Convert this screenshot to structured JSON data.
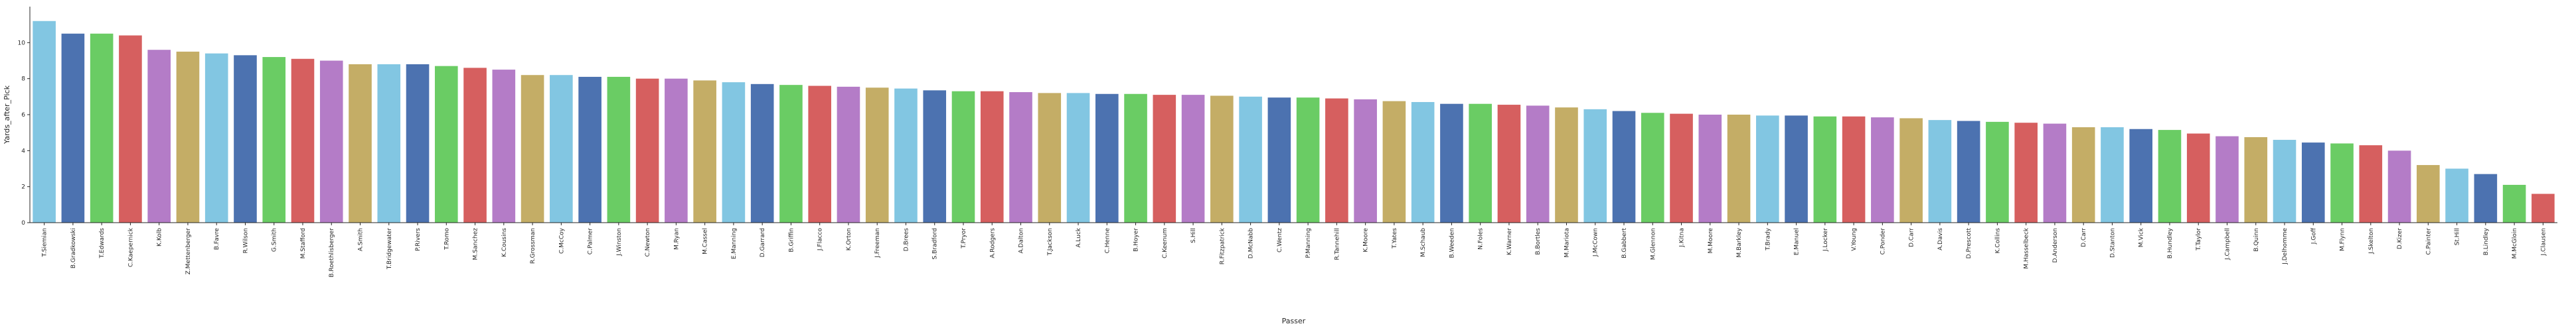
{
  "chart_data": {
    "type": "bar",
    "xlabel": "Passer",
    "ylabel": "Yards_after_Pick",
    "ylim": [
      0,
      12
    ],
    "yticks": [
      0,
      2,
      4,
      6,
      8,
      10
    ],
    "grid": false,
    "palette": [
      "#82c6e2",
      "#4c72b0",
      "#6acc64",
      "#d65f5f",
      "#b47cc7",
      "#c4ad66"
    ],
    "categories": [
      "T.Siemian",
      "B.Gradkowski",
      "T.Edwards",
      "C.Kaepernick",
      "K.Kolb",
      "Z.Mettenberger",
      "B.Favre",
      "R.Wilson",
      "G.Smith",
      "M.Stafford",
      "B.Roethlisberger",
      "A.Smith",
      "T.Bridgewater",
      "P.Rivers",
      "T.Romo",
      "M.Sanchez",
      "K.Cousins",
      "R.Grossman",
      "C.McCoy",
      "C.Palmer",
      "J.Winston",
      "C.Newton",
      "M.Ryan",
      "M.Cassel",
      "E.Manning",
      "D.Garrard",
      "B.Griffin",
      "J.Flacco",
      "K.Orton",
      "J.Freeman",
      "D.Brees",
      "S.Bradford",
      "T.Pryor",
      "A.Rodgers",
      "A.Dalton",
      "T.Jackson",
      "A.Luck",
      "C.Henne",
      "B.Hoyer",
      "C.Keenum",
      "S.Hill",
      "R.Fitzpatrick",
      "D.McNabb",
      "C.Wentz",
      "P.Manning",
      "R.Tannehill",
      "K.Moore",
      "T.Yates",
      "M.Schaub",
      "B.Weeden",
      "N.Foles",
      "K.Warner",
      "B.Bortles",
      "M.Mariota",
      "J.McCown",
      "B.Gabbert",
      "M.Glennon",
      "J.Kitna",
      "M.Moore",
      "M.Barkley",
      "T.Brady",
      "E.Manuel",
      "J.Locker",
      "V.Young",
      "C.Ponder",
      "D.Carr",
      "A.Davis",
      "D.Prescott",
      "K.Collins",
      "M.Hasselbeck",
      "D.Anderson",
      "D.Carr",
      "D.Stanton",
      "M.Vick",
      "B.Hundley",
      "T.Taylor",
      "J.Campbell",
      "B.Quinn",
      "J.Delhomme",
      "J.Goff",
      "M.Flynn",
      "J.Skelton",
      "D.Kizer",
      "C.Painter",
      "St.Hill",
      "B.Lindley",
      "M.McGloin",
      "J.Clausen"
    ],
    "values": [
      11.2,
      10.5,
      10.5,
      10.4,
      9.6,
      9.5,
      9.4,
      9.3,
      9.2,
      9.1,
      9.0,
      8.8,
      8.8,
      8.8,
      8.7,
      8.6,
      8.5,
      8.2,
      8.2,
      8.1,
      8.1,
      8.0,
      8.0,
      7.9,
      7.8,
      7.7,
      7.65,
      7.6,
      7.55,
      7.5,
      7.45,
      7.35,
      7.3,
      7.3,
      7.25,
      7.2,
      7.2,
      7.15,
      7.15,
      7.1,
      7.1,
      7.05,
      7.0,
      6.95,
      6.95,
      6.9,
      6.85,
      6.75,
      6.7,
      6.6,
      6.6,
      6.55,
      6.5,
      6.4,
      6.3,
      6.2,
      6.1,
      6.05,
      6.0,
      6.0,
      5.95,
      5.95,
      5.9,
      5.9,
      5.85,
      5.8,
      5.7,
      5.65,
      5.6,
      5.55,
      5.5,
      5.3,
      5.3,
      5.2,
      5.15,
      4.95,
      4.8,
      4.75,
      4.6,
      4.45,
      4.4,
      4.3,
      4.0,
      3.2,
      3.0,
      2.7,
      2.1,
      1.6
    ]
  }
}
